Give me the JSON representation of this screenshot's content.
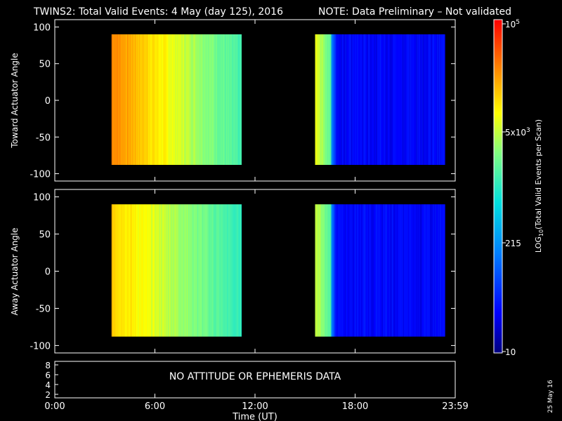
{
  "header": {
    "title": "TWINS2: Total Valid Events:  4 May (day 125), 2016",
    "note": "NOTE: Data Preliminary – Not validated",
    "note_color": "#ff2020"
  },
  "footer": {
    "xlabel": "Time (UT)",
    "date_stamp": "25 May 16"
  },
  "status_panel": {
    "message": "NO ATTITUDE OR EPHEMERIS DATA",
    "yticks": [
      "8",
      "6",
      "4",
      "2"
    ]
  },
  "colorbar": {
    "label_main": "LOG",
    "label_sub": "10",
    "label_rest": "(Total Valid  Events per Scan)",
    "ticks": [
      {
        "base": "10",
        "exp": "5"
      },
      {
        "base": "5x10",
        "exp": "3"
      },
      {
        "base": "215",
        "exp": ""
      },
      {
        "base": "10",
        "exp": ""
      }
    ]
  },
  "chart_data": {
    "type": "heatmap",
    "xlabel": "Time (UT)",
    "x_tick_labels": [
      "0:00",
      "6:00",
      "12:00",
      "18:00",
      "23:59"
    ],
    "x_ticks_hours": [
      0,
      6,
      12,
      18,
      24
    ],
    "xlim_hours": [
      0,
      24
    ],
    "panels": [
      {
        "name": "toward",
        "ylabel": "Toward Actuator Angle",
        "ylim": [
          -110,
          110
        ],
        "yticks": [
          100,
          50,
          0,
          -50,
          -100
        ],
        "angle_range": [
          -88,
          90
        ],
        "segments": [
          {
            "start_hour": 3.4,
            "end_hour": 11.2,
            "level_start": 0.86,
            "level_end": 0.52
          },
          {
            "start_hour": 15.6,
            "end_hour": 23.4,
            "level_start": 0.7,
            "level_end": 0.1
          }
        ]
      },
      {
        "name": "away",
        "ylabel": "Away Actuator Angle",
        "ylim": [
          -110,
          110
        ],
        "yticks": [
          100,
          50,
          0,
          -50,
          -100
        ],
        "angle_range": [
          -88,
          90
        ],
        "segments": [
          {
            "start_hour": 3.4,
            "end_hour": 11.2,
            "level_start": 0.78,
            "level_end": 0.5
          },
          {
            "start_hour": 15.6,
            "end_hour": 23.4,
            "level_start": 0.68,
            "level_end": 0.1
          }
        ]
      }
    ],
    "colorscale_min": 10,
    "colorscale_max": 100000,
    "colorscale_log": true
  }
}
